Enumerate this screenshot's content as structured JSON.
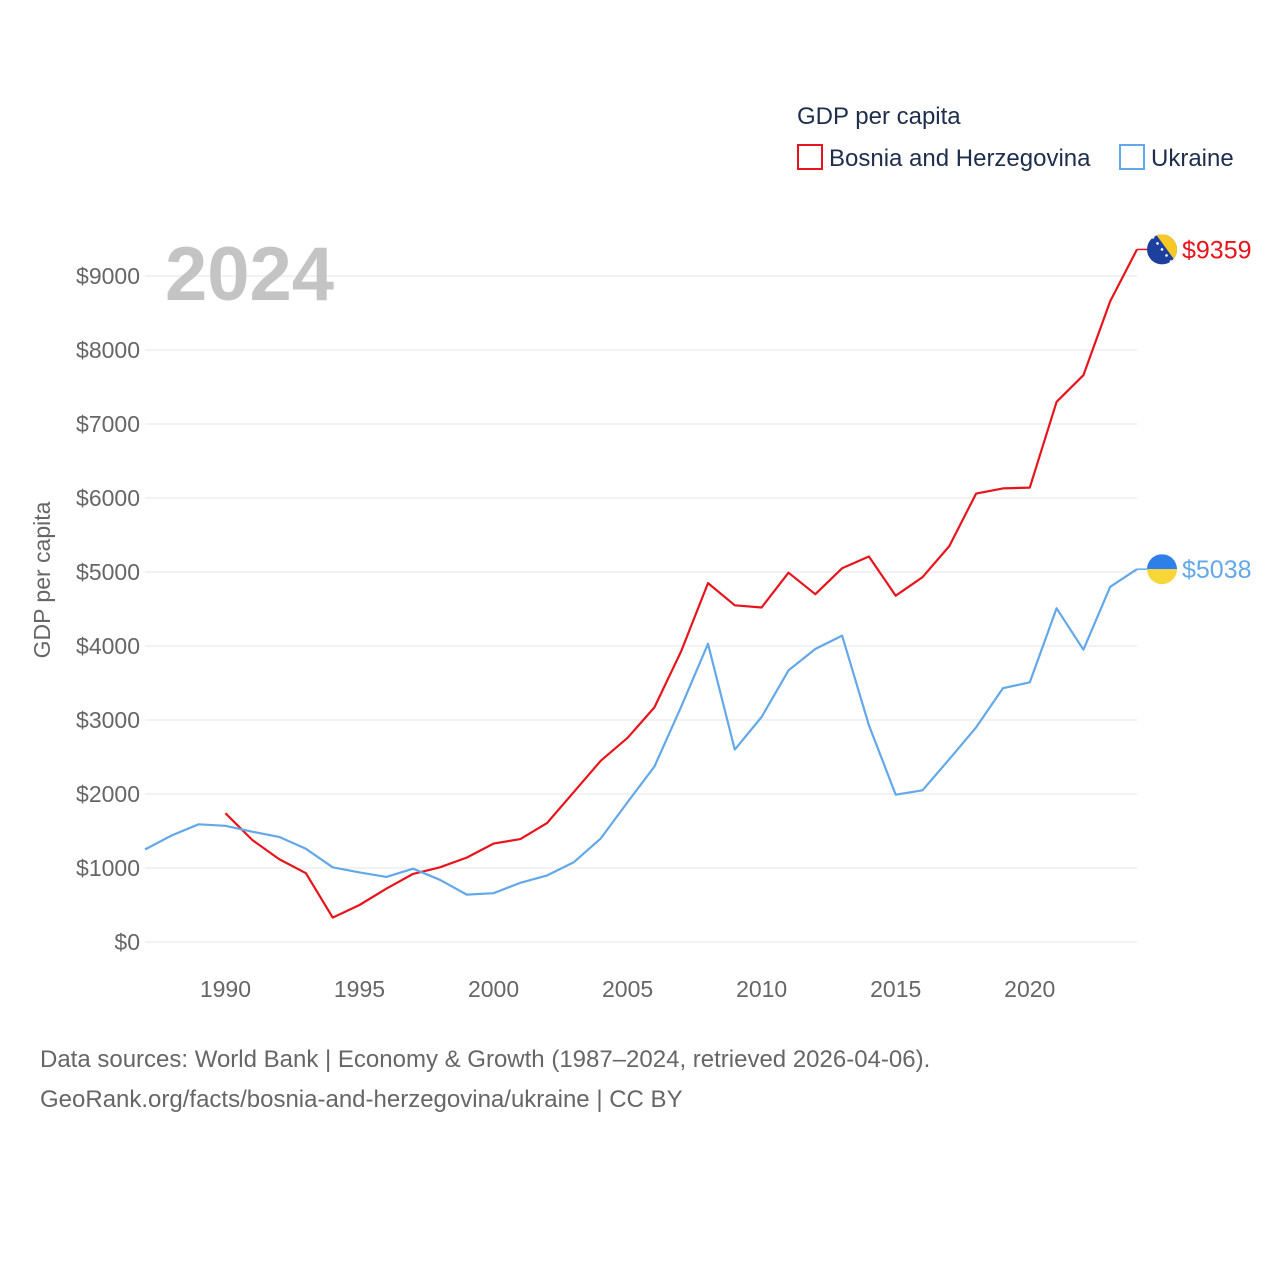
{
  "chart_data": {
    "type": "line",
    "title": "",
    "year_label": "2024",
    "ylabel": "GDP per capita",
    "xlabel": "",
    "xlim": [
      1987,
      2024
    ],
    "ylim": [
      0,
      9500
    ],
    "y_ticks": [
      0,
      1000,
      2000,
      3000,
      4000,
      5000,
      6000,
      7000,
      8000,
      9000
    ],
    "y_tick_labels": [
      "$0",
      "$1000",
      "$2000",
      "$3000",
      "$4000",
      "$5000",
      "$6000",
      "$7000",
      "$8000",
      "$9000"
    ],
    "x_ticks": [
      1990,
      1995,
      2000,
      2005,
      2010,
      2015,
      2020
    ],
    "x_tick_labels": [
      "1990",
      "1995",
      "2000",
      "2005",
      "2010",
      "2015",
      "2020"
    ],
    "legend": {
      "title": "GDP per capita",
      "position": "top-right",
      "entries": [
        "Bosnia and Herzegovina",
        "Ukraine"
      ]
    },
    "series": [
      {
        "name": "Bosnia and Herzegovina",
        "color": "#e8141b",
        "flag": "bosnia-flag",
        "end_label": "$9359",
        "x": [
          1990,
          1991,
          1992,
          1993,
          1994,
          1995,
          1996,
          1997,
          1998,
          1999,
          2000,
          2001,
          2002,
          2003,
          2004,
          2005,
          2006,
          2007,
          2008,
          2009,
          2010,
          2011,
          2012,
          2013,
          2014,
          2015,
          2016,
          2017,
          2018,
          2019,
          2020,
          2021,
          2022,
          2023,
          2024
        ],
        "values": [
          1740,
          1380,
          1120,
          930,
          330,
          500,
          720,
          920,
          1010,
          1140,
          1330,
          1390,
          1610,
          2030,
          2450,
          2760,
          3170,
          3930,
          4850,
          4550,
          4520,
          4990,
          4700,
          5050,
          5210,
          4680,
          4930,
          5350,
          6060,
          6130,
          6140,
          7300,
          7660,
          8660,
          9359
        ]
      },
      {
        "name": "Ukraine",
        "color": "#63a8e8",
        "flag": "ukraine-flag",
        "end_label": "$5038",
        "x": [
          1987,
          1988,
          1989,
          1990,
          1991,
          1992,
          1993,
          1994,
          1995,
          1996,
          1997,
          1998,
          1999,
          2000,
          2001,
          2002,
          2003,
          2004,
          2005,
          2006,
          2007,
          2008,
          2009,
          2010,
          2011,
          2012,
          2013,
          2014,
          2015,
          2016,
          2017,
          2018,
          2019,
          2020,
          2021,
          2022,
          2023,
          2024
        ],
        "values": [
          1250,
          1440,
          1590,
          1570,
          1490,
          1420,
          1260,
          1010,
          940,
          880,
          990,
          840,
          640,
          660,
          800,
          900,
          1080,
          1400,
          1890,
          2370,
          3180,
          4030,
          2600,
          3040,
          3670,
          3960,
          4140,
          2930,
          1990,
          2050,
          2470,
          2900,
          3430,
          3510,
          4510,
          3950,
          4800,
          5038
        ]
      }
    ]
  },
  "footer": {
    "line1": "Data sources: World Bank | Economy & Growth (1987–2024, retrieved 2026-04-06).",
    "line2": "GeoRank.org/facts/bosnia-and-herzegovina/ukraine | CC BY"
  },
  "colors": {
    "bosnia": "#e8141b",
    "ukraine": "#63a8e8",
    "grid": "#e6e6e6",
    "tick_text": "#666666",
    "legend_text": "#1f2d4d"
  }
}
